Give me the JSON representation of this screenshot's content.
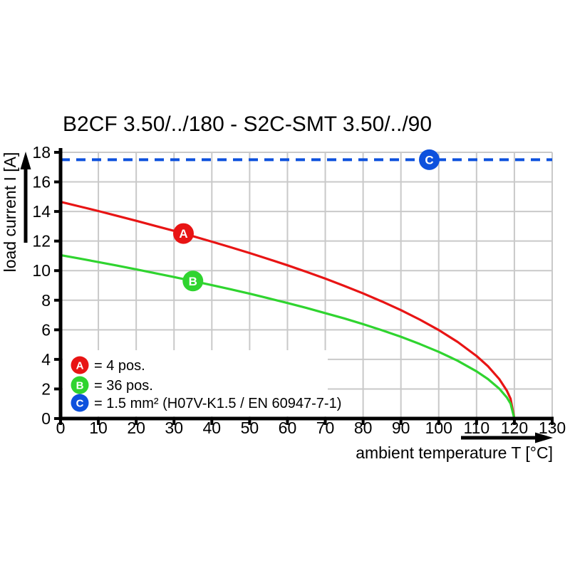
{
  "title": "B2CF 3.50/../180 - S2C-SMT 3.50/../90",
  "colors": {
    "series_a": "#e81414",
    "series_b": "#2fd42f",
    "series_c": "#0d51dd",
    "grid": "#c9c9c9",
    "axis": "#000000",
    "background": "#ffffff"
  },
  "legend": {
    "items": [
      {
        "id": "A",
        "label": "= 4 pos.",
        "color": "#e81414"
      },
      {
        "id": "B",
        "label": "= 36 pos.",
        "color": "#2fd42f"
      },
      {
        "id": "C",
        "label": "= 1.5 mm² (H07V-K1.5 / EN 60947-7-1)",
        "color": "#0d51dd"
      }
    ]
  },
  "chart_data": {
    "type": "line",
    "title": "B2CF 3.50/../180 - S2C-SMT 3.50/../90",
    "xlabel": "ambient temperature T [°C]",
    "ylabel": "load current I [A]",
    "xlim": [
      0,
      130
    ],
    "ylim": [
      0,
      18
    ],
    "x_ticks": [
      0,
      10,
      20,
      30,
      40,
      50,
      60,
      70,
      80,
      90,
      100,
      110,
      120,
      130
    ],
    "y_ticks": [
      0,
      2,
      4,
      6,
      8,
      10,
      12,
      14,
      16,
      18
    ],
    "grid": true,
    "legend_position": "lower-left-inside",
    "series": [
      {
        "name": "A",
        "label": "= 4 pos.",
        "color": "#e81414",
        "style": "solid",
        "marker": {
          "x": 32.5,
          "y": 12.51
        },
        "points": [
          [
            0,
            14.65
          ],
          [
            5,
            14.34
          ],
          [
            10,
            14.03
          ],
          [
            15,
            13.7
          ],
          [
            20,
            13.37
          ],
          [
            25,
            13.03
          ],
          [
            30,
            12.69
          ],
          [
            35,
            12.33
          ],
          [
            40,
            11.96
          ],
          [
            45,
            11.58
          ],
          [
            50,
            11.19
          ],
          [
            55,
            10.78
          ],
          [
            60,
            10.36
          ],
          [
            65,
            9.92
          ],
          [
            70,
            9.46
          ],
          [
            75,
            8.97
          ],
          [
            80,
            8.46
          ],
          [
            85,
            7.91
          ],
          [
            90,
            7.33
          ],
          [
            95,
            6.69
          ],
          [
            100,
            5.98
          ],
          [
            105,
            5.18
          ],
          [
            110,
            4.23
          ],
          [
            113,
            3.54
          ],
          [
            116,
            2.67
          ],
          [
            118,
            1.89
          ],
          [
            119,
            1.34
          ],
          [
            120,
            0
          ]
        ]
      },
      {
        "name": "B",
        "label": "= 36 pos.",
        "color": "#2fd42f",
        "style": "solid",
        "marker": {
          "x": 35,
          "y": 9.3
        },
        "points": [
          [
            0,
            11.05
          ],
          [
            5,
            10.82
          ],
          [
            10,
            10.58
          ],
          [
            15,
            10.34
          ],
          [
            20,
            10.09
          ],
          [
            25,
            9.83
          ],
          [
            30,
            9.57
          ],
          [
            35,
            9.3
          ],
          [
            40,
            9.02
          ],
          [
            45,
            8.74
          ],
          [
            50,
            8.44
          ],
          [
            55,
            8.13
          ],
          [
            60,
            7.81
          ],
          [
            65,
            7.48
          ],
          [
            70,
            7.13
          ],
          [
            75,
            6.77
          ],
          [
            80,
            6.38
          ],
          [
            85,
            5.97
          ],
          [
            90,
            5.53
          ],
          [
            95,
            5.04
          ],
          [
            100,
            4.51
          ],
          [
            105,
            3.91
          ],
          [
            110,
            3.19
          ],
          [
            113,
            2.67
          ],
          [
            116,
            2.02
          ],
          [
            118,
            1.43
          ],
          [
            119,
            1.01
          ],
          [
            120,
            0
          ]
        ]
      },
      {
        "name": "C",
        "label": "= 1.5 mm² (H07V-K1.5 / EN 60947-7-1)",
        "color": "#0d51dd",
        "style": "dashed",
        "marker": {
          "x": 97.5,
          "y": 17.5
        },
        "points": [
          [
            0,
            17.5
          ],
          [
            130,
            17.5
          ]
        ]
      }
    ]
  }
}
